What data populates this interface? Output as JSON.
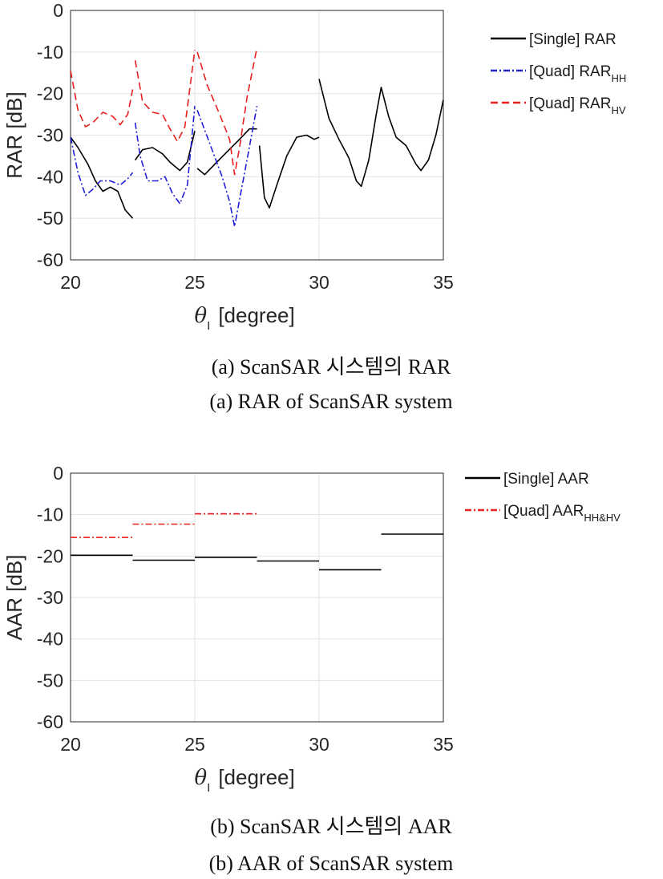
{
  "chart_data": [
    {
      "type": "line",
      "panel_id": "a",
      "caption_ko": "(a)  ScanSAR  시스템의  RAR",
      "caption_en": "(a)  RAR  of  ScanSAR  system",
      "xlabel": "[degree]",
      "xlabel_symbol": "θ",
      "xlabel_subscript": "I",
      "ylabel": "RAR [dB]",
      "xlim": [
        20,
        35
      ],
      "ylim": [
        -60,
        0
      ],
      "xticks": [
        "20",
        "25",
        "30",
        "35"
      ],
      "yticks": [
        "0",
        "-10",
        "-20",
        "-30",
        "-40",
        "-50",
        "-60"
      ],
      "grid": true,
      "legend_position": "outside-right",
      "series": [
        {
          "name": "[Single] RAR",
          "legend_main": "[Single] RAR",
          "legend_sub": "",
          "color": "#000000",
          "style": "solid",
          "segments": [
            [
              [
                20.0,
                -30.5
              ],
              [
                20.3,
                -33
              ],
              [
                20.7,
                -37
              ],
              [
                21.0,
                -41
              ],
              [
                21.3,
                -43.5
              ],
              [
                21.6,
                -42.5
              ],
              [
                21.9,
                -43.5
              ],
              [
                22.2,
                -48
              ],
              [
                22.5,
                -50
              ]
            ],
            [
              [
                22.6,
                -36
              ],
              [
                22.9,
                -33.5
              ],
              [
                23.3,
                -33
              ],
              [
                23.7,
                -34.5
              ],
              [
                24.0,
                -36.5
              ],
              [
                24.4,
                -38.5
              ],
              [
                24.7,
                -36.5
              ],
              [
                25.0,
                -29
              ]
            ],
            [
              [
                25.1,
                -38
              ],
              [
                25.4,
                -39.5
              ],
              [
                25.8,
                -37
              ],
              [
                26.3,
                -34
              ],
              [
                26.8,
                -31
              ],
              [
                27.2,
                -28.5
              ],
              [
                27.5,
                -28.5
              ]
            ],
            [
              [
                27.6,
                -32.5
              ],
              [
                27.8,
                -45
              ],
              [
                28.0,
                -47.5
              ],
              [
                28.3,
                -42
              ],
              [
                28.7,
                -35
              ],
              [
                29.1,
                -30.5
              ],
              [
                29.5,
                -30
              ],
              [
                29.8,
                -31
              ],
              [
                30.0,
                -30.5
              ]
            ],
            [
              [
                30.0,
                -16.5
              ],
              [
                30.4,
                -26
              ],
              [
                30.8,
                -31
              ],
              [
                31.2,
                -35.5
              ],
              [
                31.5,
                -41
              ],
              [
                31.7,
                -42.3
              ],
              [
                32.0,
                -36
              ],
              [
                32.3,
                -25
              ],
              [
                32.5,
                -18.5
              ],
              [
                32.8,
                -25.5
              ],
              [
                33.1,
                -30.5
              ],
              [
                33.5,
                -32.5
              ],
              [
                33.9,
                -37
              ],
              [
                34.1,
                -38.5
              ],
              [
                34.4,
                -36
              ],
              [
                34.7,
                -30
              ],
              [
                35.0,
                -21.5
              ]
            ]
          ]
        },
        {
          "name": "[Quad] RAR_HH",
          "legend_main": "[Quad] RAR",
          "legend_sub": "HH",
          "color": "#1f1fd8",
          "style": "dashdot",
          "segments": [
            [
              [
                20.0,
                -30.5
              ],
              [
                20.3,
                -39
              ],
              [
                20.6,
                -44.5
              ],
              [
                20.9,
                -43
              ],
              [
                21.2,
                -41
              ],
              [
                21.6,
                -41
              ],
              [
                22.0,
                -42
              ],
              [
                22.3,
                -40.5
              ],
              [
                22.5,
                -39
              ]
            ],
            [
              [
                22.6,
                -27
              ],
              [
                22.8,
                -35
              ],
              [
                23.1,
                -41
              ],
              [
                23.5,
                -41
              ],
              [
                23.8,
                -40
              ],
              [
                24.1,
                -44
              ],
              [
                24.4,
                -46.5
              ],
              [
                24.7,
                -42
              ],
              [
                25.0,
                -23
              ]
            ],
            [
              [
                25.1,
                -24
              ],
              [
                25.6,
                -32
              ],
              [
                26.1,
                -40
              ],
              [
                26.4,
                -46
              ],
              [
                26.6,
                -52
              ],
              [
                26.8,
                -45.5
              ],
              [
                27.1,
                -36
              ],
              [
                27.5,
                -23
              ]
            ]
          ]
        },
        {
          "name": "[Quad] RAR_HV",
          "legend_main": "[Quad] RAR",
          "legend_sub": "HV",
          "color": "#e8201e",
          "style": "dashed",
          "segments": [
            [
              [
                20.0,
                -14.5
              ],
              [
                20.3,
                -24
              ],
              [
                20.6,
                -28
              ],
              [
                20.9,
                -27
              ],
              [
                21.3,
                -24.5
              ],
              [
                21.7,
                -25.5
              ],
              [
                22.0,
                -27.5
              ],
              [
                22.3,
                -25
              ],
              [
                22.5,
                -19
              ]
            ],
            [
              [
                22.6,
                -12
              ],
              [
                22.9,
                -22
              ],
              [
                23.3,
                -24.5
              ],
              [
                23.7,
                -25
              ],
              [
                24.0,
                -28.5
              ],
              [
                24.3,
                -31.5
              ],
              [
                24.6,
                -28
              ],
              [
                25.0,
                -9.5
              ]
            ],
            [
              [
                25.1,
                -10
              ],
              [
                25.5,
                -18
              ],
              [
                26.0,
                -25
              ],
              [
                26.4,
                -31
              ],
              [
                26.6,
                -39.5
              ],
              [
                26.8,
                -33
              ],
              [
                27.1,
                -21
              ],
              [
                27.5,
                -9
              ]
            ]
          ]
        }
      ]
    },
    {
      "type": "line",
      "panel_id": "b",
      "caption_ko": "(b)  ScanSAR  시스템의  AAR",
      "caption_en": "(b)  AAR  of  ScanSAR  system",
      "xlabel": "[degree]",
      "xlabel_symbol": "θ",
      "xlabel_subscript": "I",
      "ylabel": "AAR [dB]",
      "xlim": [
        20,
        35
      ],
      "ylim": [
        -60,
        0
      ],
      "xticks": [
        "20",
        "25",
        "30",
        "35"
      ],
      "yticks": [
        "0",
        "-10",
        "-20",
        "-30",
        "-40",
        "-50",
        "-60"
      ],
      "grid": true,
      "legend_position": "outside-right",
      "series": [
        {
          "name": "[Single] AAR",
          "legend_main": "[Single] AAR",
          "legend_sub": "",
          "color": "#000000",
          "style": "solid",
          "segments": [
            [
              [
                20.0,
                -19.8
              ],
              [
                22.5,
                -19.8
              ]
            ],
            [
              [
                22.5,
                -21.0
              ],
              [
                25.0,
                -21.0
              ]
            ],
            [
              [
                25.0,
                -20.3
              ],
              [
                27.5,
                -20.3
              ]
            ],
            [
              [
                27.5,
                -21.2
              ],
              [
                30.0,
                -21.2
              ]
            ],
            [
              [
                30.0,
                -23.3
              ],
              [
                32.5,
                -23.3
              ]
            ],
            [
              [
                32.5,
                -14.7
              ],
              [
                35.0,
                -14.7
              ]
            ]
          ]
        },
        {
          "name": "[Quad] AAR_HH&HV",
          "legend_main": "[Quad] AAR",
          "legend_sub": "HH&HV",
          "color": "#e8201e",
          "style": "dashdot",
          "segments": [
            [
              [
                20.0,
                -15.5
              ],
              [
                22.5,
                -15.5
              ]
            ],
            [
              [
                22.5,
                -12.3
              ],
              [
                25.0,
                -12.3
              ]
            ],
            [
              [
                25.0,
                -9.8
              ],
              [
                27.5,
                -9.8
              ]
            ]
          ]
        }
      ]
    }
  ]
}
